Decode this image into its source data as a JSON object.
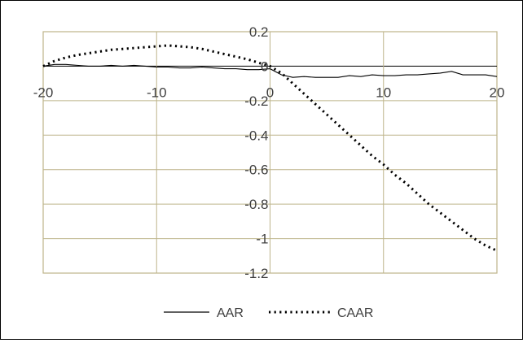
{
  "chart_data": {
    "type": "line",
    "title": "",
    "xlabel": "",
    "ylabel": "",
    "xlim": [
      -20,
      20
    ],
    "ylim": [
      -1.2,
      0.2
    ],
    "x_ticks": [
      -20,
      -10,
      0,
      10,
      20
    ],
    "x_tick_labels": [
      "-20",
      "-10",
      "0",
      "10",
      "20"
    ],
    "y_ticks": [
      0.2,
      0,
      -0.2,
      -0.4,
      -0.6,
      -0.8,
      -1,
      -1.2
    ],
    "y_tick_labels": [
      "0.2",
      "0",
      "-0.2",
      "-0.4",
      "-0.6",
      "-0.8",
      "-1",
      "-1.2"
    ],
    "grid": true,
    "legend_position": "bottom",
    "x": [
      -20,
      -19,
      -18,
      -17,
      -16,
      -15,
      -14,
      -13,
      -12,
      -11,
      -10,
      -9,
      -8,
      -7,
      -6,
      -5,
      -4,
      -3,
      -2,
      -1,
      0,
      1,
      2,
      3,
      4,
      5,
      6,
      7,
      8,
      9,
      10,
      11,
      12,
      13,
      14,
      15,
      16,
      17,
      18,
      19,
      20
    ],
    "series": [
      {
        "name": "AAR",
        "style": "solid",
        "color": "#000000",
        "values": [
          0.0,
          0.01,
          0.01,
          0.005,
          0.0,
          0.0,
          0.005,
          0.0,
          0.005,
          0.0,
          -0.005,
          -0.005,
          -0.01,
          -0.01,
          -0.005,
          -0.01,
          -0.015,
          -0.015,
          -0.02,
          -0.02,
          -0.015,
          -0.05,
          -0.065,
          -0.06,
          -0.065,
          -0.065,
          -0.065,
          -0.055,
          -0.06,
          -0.05,
          -0.055,
          -0.055,
          -0.05,
          -0.05,
          -0.045,
          -0.04,
          -0.03,
          -0.05,
          -0.05,
          -0.05,
          -0.06
        ]
      },
      {
        "name": "CAAR",
        "style": "dotted",
        "color": "#000000",
        "values": [
          0.0,
          0.03,
          0.05,
          0.065,
          0.075,
          0.085,
          0.095,
          0.1,
          0.105,
          0.11,
          0.115,
          0.12,
          0.115,
          0.11,
          0.1,
          0.085,
          0.07,
          0.055,
          0.04,
          0.02,
          0.0,
          -0.04,
          -0.1,
          -0.16,
          -0.22,
          -0.28,
          -0.34,
          -0.4,
          -0.46,
          -0.52,
          -0.57,
          -0.63,
          -0.68,
          -0.74,
          -0.8,
          -0.85,
          -0.9,
          -0.95,
          -1.0,
          -1.04,
          -1.07
        ]
      }
    ]
  }
}
